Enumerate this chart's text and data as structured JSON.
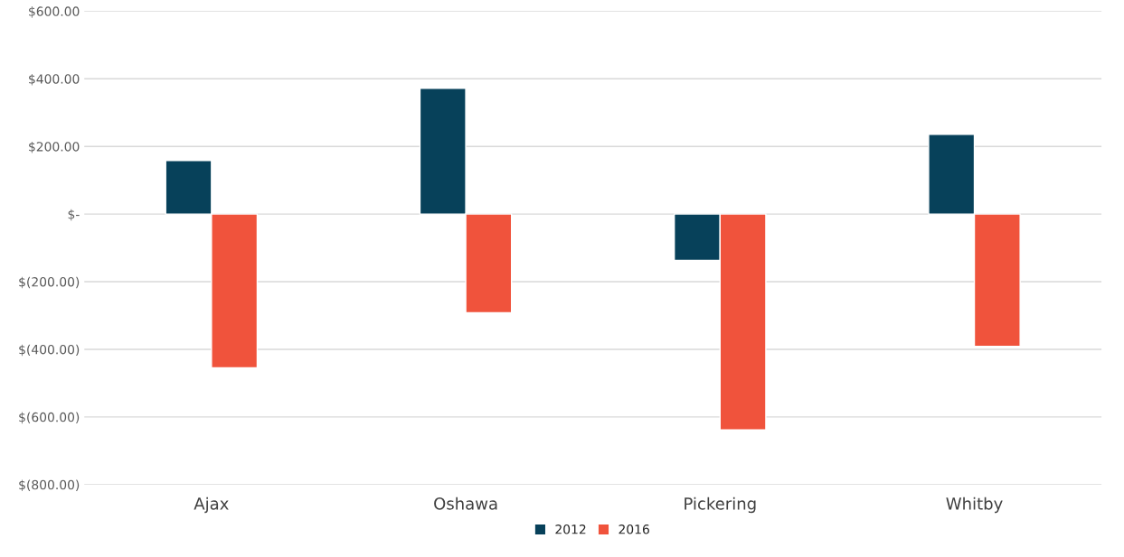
{
  "chart_data": {
    "type": "bar",
    "categories": [
      "Ajax",
      "Oshawa",
      "Pickering",
      "Whitby"
    ],
    "series": [
      {
        "name": "2012",
        "color": "#07415a",
        "values": [
          158,
          372,
          -137,
          236
        ]
      },
      {
        "name": "2016",
        "color": "#f0533c",
        "values": [
          -455,
          -292,
          -638,
          -391
        ]
      }
    ],
    "ylim": [
      -800,
      600
    ],
    "yticks": [
      {
        "value": -800,
        "label": "$(800.00)"
      },
      {
        "value": -600,
        "label": "$(600.00)"
      },
      {
        "value": -400,
        "label": "$(400.00)"
      },
      {
        "value": -200,
        "label": "$(200.00)"
      },
      {
        "value": 0,
        "label": "$-"
      },
      {
        "value": 200,
        "label": "$200.00"
      },
      {
        "value": 400,
        "label": "$400.00"
      },
      {
        "value": 600,
        "label": "$600.00"
      }
    ],
    "grid": "y",
    "legend": "bottom"
  }
}
